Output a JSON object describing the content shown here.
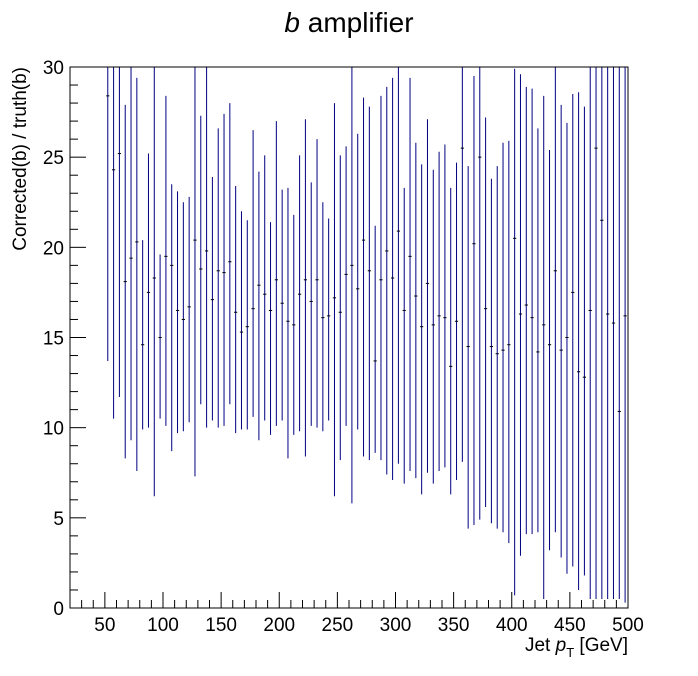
{
  "chart_data": {
    "type": "scatter",
    "title_italic": "b",
    "title_rest": " amplifier",
    "xlabel_prefix": "Jet ",
    "xlabel_var": "p",
    "xlabel_sub": "T",
    "xlabel_unit": " [GeV]",
    "ylabel": "Corrected(b) / truth(b)",
    "xlim": [
      20,
      500
    ],
    "ylim": [
      0,
      30
    ],
    "x_major_ticks": [
      50,
      100,
      150,
      200,
      250,
      300,
      350,
      400,
      450,
      500
    ],
    "y_major_ticks": [
      0,
      5,
      10,
      15,
      20,
      25,
      30
    ],
    "bin_width": 5,
    "series": [
      {
        "color": "#000080",
        "marker_color": "#000000",
        "x": [
          52.5,
          57.5,
          62.5,
          67.5,
          72.5,
          77.5,
          82.5,
          87.5,
          92.5,
          97.5,
          102.5,
          107.5,
          112.5,
          117.5,
          122.5,
          127.5,
          132.5,
          137.5,
          142.5,
          147.5,
          152.5,
          157.5,
          162.5,
          167.5,
          172.5,
          177.5,
          182.5,
          187.5,
          192.5,
          197.5,
          202.5,
          207.5,
          212.5,
          217.5,
          222.5,
          227.5,
          232.5,
          237.5,
          242.5,
          247.5,
          252.5,
          257.5,
          262.5,
          267.5,
          272.5,
          277.5,
          282.5,
          287.5,
          292.5,
          297.5,
          302.5,
          307.5,
          312.5,
          317.5,
          322.5,
          327.5,
          332.5,
          337.5,
          342.5,
          347.5,
          352.5,
          357.5,
          362.5,
          367.5,
          372.5,
          377.5,
          382.5,
          387.5,
          392.5,
          397.5,
          402.5,
          407.5,
          412.5,
          417.5,
          422.5,
          427.5,
          432.5,
          437.5,
          442.5,
          447.5,
          452.5,
          457.5,
          462.5,
          467.5,
          472.5,
          477.5,
          482.5,
          487.5,
          492.5,
          497.5
        ],
        "y": [
          28.4,
          24.3,
          25.2,
          18.1,
          19.4,
          20.3,
          14.6,
          17.5,
          18.3,
          15.0,
          19.5,
          19.0,
          16.5,
          16.0,
          16.7,
          20.4,
          18.8,
          19.8,
          17.1,
          18.7,
          18.6,
          19.2,
          16.4,
          15.3,
          15.6,
          16.6,
          17.9,
          17.4,
          16.5,
          18.2,
          16.9,
          15.9,
          15.7,
          17.4,
          18.2,
          17.0,
          18.2,
          16.1,
          16.2,
          17.2,
          16.4,
          18.5,
          19.0,
          17.7,
          20.4,
          18.7,
          13.7,
          18.2,
          19.8,
          18.3,
          20.9,
          16.5,
          19.5,
          17.3,
          15.6,
          18.0,
          15.7,
          16.2,
          16.1,
          13.4,
          15.9,
          25.5,
          14.5,
          20.2,
          25.0,
          16.6,
          14.5,
          14.1,
          14.3,
          14.6,
          20.5,
          16.3,
          16.8,
          16.1,
          14.2,
          15.7,
          14.6,
          18.7,
          14.3,
          15.0,
          17.5,
          13.1,
          12.8,
          16.5,
          25.5,
          21.5,
          16.3,
          15.8,
          10.9,
          16.2
        ],
        "err_low": [
          13.7,
          10.5,
          11.7,
          8.3,
          9.3,
          7.6,
          9.9,
          10.0,
          6.2,
          10.5,
          10.1,
          8.7,
          9.7,
          9.8,
          10.3,
          7.3,
          11.3,
          10.0,
          10.4,
          10.0,
          10.1,
          11.3,
          9.7,
          9.9,
          9.9,
          10.6,
          9.3,
          10.4,
          9.6,
          10.1,
          10.4,
          8.3,
          9.6,
          9.8,
          8.4,
          10.1,
          10.0,
          9.8,
          10.4,
          6.2,
          8.2,
          10.1,
          5.8,
          9.9,
          8.4,
          8.2,
          8.6,
          8.2,
          7.4,
          7.1,
          8.0,
          6.9,
          7.6,
          7.2,
          6.3,
          7.5,
          6.9,
          7.6,
          7.8,
          6.3,
          7.1,
          8.1,
          4.4,
          4.6,
          4.9,
          5.6,
          4.7,
          4.4,
          4.2,
          3.6,
          0.7,
          2.9,
          4.1,
          4.1,
          4.2,
          0.5,
          3.2,
          4.2,
          2.8,
          1.9,
          2.3,
          1.0,
          1.8,
          0.5,
          0.5,
          0.5,
          0.5,
          0.5,
          0.5,
          0.3
        ],
        "err_high": [
          30.5,
          30.5,
          30.5,
          27.9,
          30.5,
          29.4,
          20.4,
          25.2,
          30.5,
          19.6,
          28.4,
          23.5,
          23.1,
          22.5,
          22.8,
          30.5,
          27.3,
          30.5,
          23.9,
          26.6,
          27.4,
          28.0,
          23.4,
          22.0,
          21.5,
          26.5,
          24.2,
          25.1,
          21.4,
          27.0,
          23.2,
          23.3,
          21.8,
          25.1,
          27.1,
          23.6,
          26.0,
          22.5,
          21.6,
          28.0,
          25.1,
          25.6,
          30.5,
          26.3,
          28.3,
          27.8,
          21.2,
          28.4,
          28.9,
          29.4,
          30.5,
          23.3,
          29.4,
          25.8,
          24.6,
          27.1,
          24.3,
          25.3,
          25.7,
          23.3,
          24.7,
          30.5,
          24.5,
          29.5,
          30.5,
          27.2,
          23.8,
          24.5,
          25.8,
          25.9,
          29.9,
          29.6,
          28.9,
          28.8,
          26.6,
          28.4,
          25.4,
          30.5,
          27.9,
          26.9,
          28.5,
          28.6,
          27.8,
          30.5,
          30.5,
          30.5,
          30.5,
          30.5,
          30.5,
          30.5
        ]
      }
    ]
  }
}
